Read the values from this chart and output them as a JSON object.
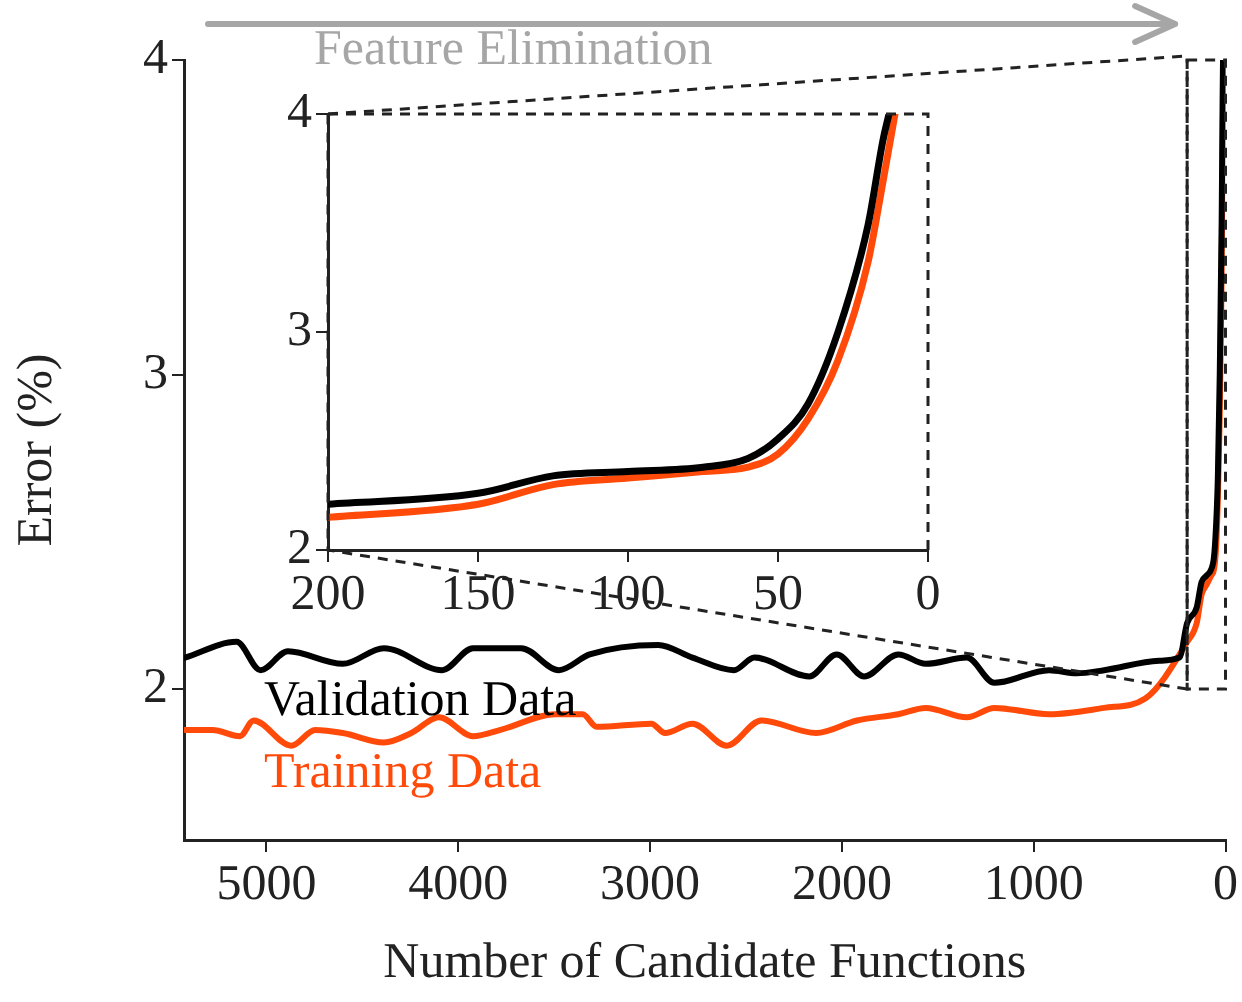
{
  "chart_data": [
    {
      "type": "line",
      "xlabel": "Number of Candidate Functions",
      "ylabel": "Error (%)",
      "annotations": [
        "Feature Elimination"
      ],
      "xlim": [
        5430,
        0
      ],
      "xticks": [
        5000,
        4000,
        3000,
        2000,
        1000,
        0
      ],
      "ylim": [
        1.52,
        4
      ],
      "yticks": [
        2,
        3,
        4
      ],
      "grid": false,
      "legend": false,
      "marker": "none",
      "series": [
        {
          "name": "Validation Data",
          "color": "#000000",
          "x": [
            5425,
            5156,
            5031,
            4888,
            4602,
            4388,
            4084,
            3923,
            3672,
            3476,
            3315,
            2958,
            2779,
            2563,
            2456,
            2170,
            2027,
            1884,
            1706,
            1563,
            1348,
            1205,
            919,
            776,
            633,
            346,
            240,
            200,
            150,
            125,
            100,
            75,
            60,
            50,
            40,
            30,
            20,
            15,
            13
          ],
          "values": [
            2.1,
            2.15,
            2.06,
            2.12,
            2.08,
            2.13,
            2.06,
            2.13,
            2.13,
            2.06,
            2.11,
            2.14,
            2.1,
            2.06,
            2.1,
            2.04,
            2.11,
            2.04,
            2.11,
            2.08,
            2.1,
            2.02,
            2.06,
            2.05,
            2.06,
            2.09,
            2.1,
            2.21,
            2.26,
            2.34,
            2.36,
            2.38,
            2.42,
            2.51,
            2.67,
            3.0,
            3.49,
            3.88,
            4.0
          ]
        },
        {
          "name": "Training Data",
          "color": "#ff4a0a",
          "x": [
            5425,
            5281,
            5138,
            5067,
            4871,
            4746,
            4602,
            4388,
            4245,
            4101,
            3923,
            3780,
            3494,
            3351,
            3279,
            2993,
            2922,
            2779,
            2600,
            2420,
            2135,
            1921,
            1706,
            1563,
            1348,
            1205,
            919,
            633,
            418,
            200,
            150,
            125,
            100,
            75,
            60,
            50,
            40,
            30,
            20,
            15,
            11
          ],
          "values": [
            1.87,
            1.87,
            1.85,
            1.9,
            1.82,
            1.87,
            1.86,
            1.83,
            1.86,
            1.91,
            1.85,
            1.87,
            1.92,
            1.92,
            1.88,
            1.89,
            1.86,
            1.89,
            1.82,
            1.9,
            1.86,
            1.9,
            1.92,
            1.94,
            1.91,
            1.94,
            1.92,
            1.94,
            1.97,
            2.15,
            2.21,
            2.3,
            2.33,
            2.36,
            2.38,
            2.44,
            2.6,
            2.87,
            3.32,
            3.69,
            4.0
          ]
        }
      ]
    },
    {
      "type": "line",
      "xlim": [
        200,
        0
      ],
      "xticks": [
        200,
        150,
        100,
        50,
        0
      ],
      "ylim": [
        2,
        4
      ],
      "yticks": [
        2,
        3,
        4
      ],
      "grid": false,
      "legend": false,
      "marker": "none",
      "line_style": "solid",
      "series": [
        {
          "color": "#000000",
          "x": [
            200,
            150,
            125,
            100,
            75,
            60,
            50,
            40,
            30,
            20,
            15,
            13
          ],
          "values": [
            2.21,
            2.26,
            2.34,
            2.36,
            2.38,
            2.42,
            2.51,
            2.67,
            3.0,
            3.49,
            3.88,
            4.0
          ]
        },
        {
          "color": "#ff4a0a",
          "x": [
            200,
            150,
            125,
            100,
            75,
            60,
            50,
            40,
            30,
            20,
            15,
            11
          ],
          "values": [
            2.15,
            2.21,
            2.3,
            2.33,
            2.36,
            2.38,
            2.44,
            2.6,
            2.87,
            3.32,
            3.69,
            4.0
          ]
        }
      ]
    }
  ]
}
